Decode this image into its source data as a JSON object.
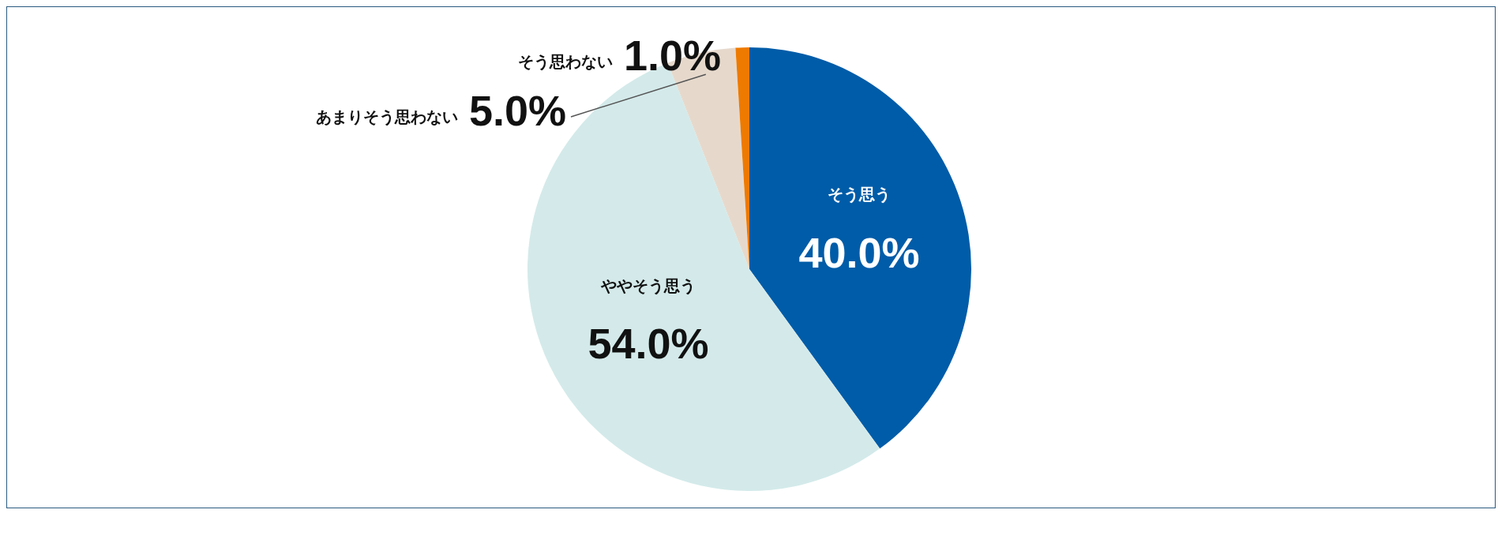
{
  "chart_data": {
    "type": "pie",
    "categories": [
      "そう思う",
      "ややそう思う",
      "あまりそう思わない",
      "そう思わない"
    ],
    "values": [
      40,
      54,
      5,
      1
    ],
    "colors": [
      "#005ca8",
      "#d4eaea",
      "#e6d9cc",
      "#ee7a00"
    ],
    "value_labels": [
      "40.0%",
      "54.0%",
      "5.0%",
      "1.0%"
    ],
    "legend": false
  }
}
